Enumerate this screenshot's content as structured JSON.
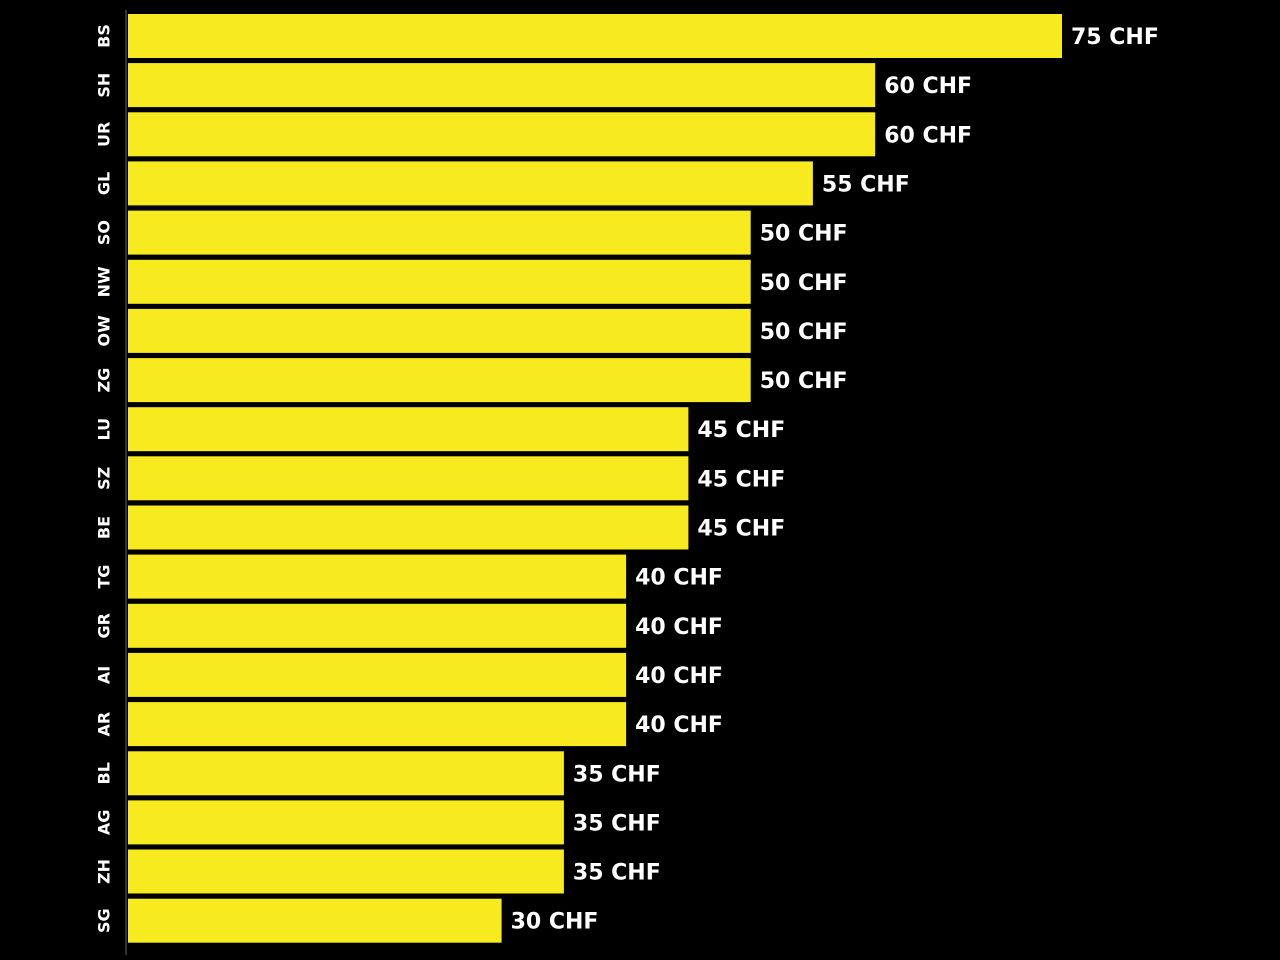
{
  "chart_data": {
    "type": "bar",
    "orientation": "horizontal",
    "categories": [
      "BS",
      "SH",
      "UR",
      "GL",
      "SO",
      "NW",
      "OW",
      "ZG",
      "LU",
      "SZ",
      "BE",
      "TG",
      "GR",
      "AI",
      "AR",
      "BL",
      "AG",
      "ZH",
      "SG"
    ],
    "values": [
      75,
      60,
      60,
      55,
      50,
      50,
      50,
      50,
      45,
      45,
      45,
      40,
      40,
      40,
      40,
      35,
      35,
      35,
      30
    ],
    "value_labels": [
      "75 CHF",
      "60 CHF",
      "60 CHF",
      "55 CHF",
      "50 CHF",
      "50 CHF",
      "50 CHF",
      "50 CHF",
      "45 CHF",
      "45 CHF",
      "45 CHF",
      "40 CHF",
      "40 CHF",
      "40 CHF",
      "40 CHF",
      "35 CHF",
      "35 CHF",
      "35 CHF",
      "30 CHF"
    ],
    "xlim": [
      0,
      75
    ],
    "grid": false,
    "legend": "none",
    "colors": {
      "bar": "#f7ea1e",
      "background": "#000000",
      "text": "#ffffff",
      "axis": "#333333"
    }
  }
}
